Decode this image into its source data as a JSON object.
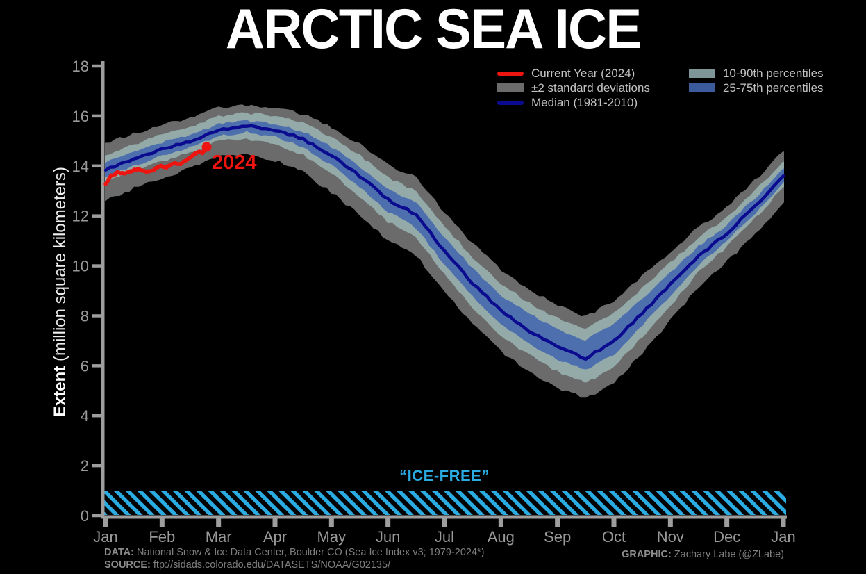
{
  "title": "ARCTIC SEA ICE",
  "y_axis": {
    "label_bold": "Extent",
    "label_rest": " (million square kilometers)",
    "ticks": [
      0,
      2,
      4,
      6,
      8,
      10,
      12,
      14,
      16,
      18
    ]
  },
  "x_axis": {
    "ticks": [
      "Jan",
      "Feb",
      "Mar",
      "Apr",
      "May",
      "Jun",
      "Jul",
      "Aug",
      "Sep",
      "Oct",
      "Nov",
      "Dec",
      "Jan"
    ]
  },
  "legend": {
    "items": [
      {
        "label": "Current Year (2024)",
        "swatch": "line",
        "color_key": "current_year"
      },
      {
        "label": "±2 standard deviations",
        "swatch": "box",
        "color_key": "legend_std"
      },
      {
        "label": "Median (1981-2010)",
        "swatch": "line",
        "color_key": "median"
      },
      {
        "label": "10-90th percentiles",
        "swatch": "box",
        "color_key": "legend_p1090"
      },
      {
        "label": "25-75th percentiles",
        "swatch": "box",
        "color_key": "legend_p2575"
      }
    ]
  },
  "annotations": {
    "current_year": "2024",
    "ice_free": "“ICE-FREE”"
  },
  "footer": {
    "data_label": "DATA:",
    "data_text": " National Snow & Ice Data Center, Boulder CO (Sea Ice Index v3; 1979-2024*)",
    "source_label": "SOURCE:",
    "source_text": " ftp://sidads.colorado.edu/DATASETS/NOAA/G02135/",
    "graphic_label": "GRAPHIC:",
    "graphic_text": " Zachary Labe (@ZLabe)"
  },
  "colors": {
    "background": "#000000",
    "title": "#ffffff",
    "axis": "#9e9e9e",
    "tick_label": "#999999",
    "current_year": "#ee1410",
    "median": "#0b0b8f",
    "std_band": "#6b6b6b",
    "p1090_band": "#94aaa8",
    "p2575_band": "#4d6fae",
    "legend_std": "#6b6b6b",
    "legend_p1090": "#7e9697",
    "legend_p2575": "#3b5b9c",
    "ice_free": "#2aabe2",
    "footer_text": "#7f7f7f",
    "legend_text": "#c2c2c2"
  },
  "chart_data": {
    "type": "line",
    "title": "ARCTIC SEA ICE",
    "ylabel": "Extent (million square kilometers)",
    "ylim": [
      0,
      18
    ],
    "xlim_months": [
      0,
      12
    ],
    "grid": false,
    "legend_position": "top-right",
    "months": [
      0,
      0.5,
      1,
      1.5,
      2,
      2.5,
      3,
      3.5,
      4,
      4.5,
      5,
      5.5,
      6,
      6.5,
      7,
      7.5,
      8,
      8.5,
      9,
      9.5,
      10,
      10.5,
      11,
      11.5,
      12
    ],
    "series": [
      {
        "name": "Median (1981-2010)",
        "values": [
          13.83,
          14.28,
          14.67,
          15.0,
          15.45,
          15.6,
          15.45,
          15.08,
          14.43,
          13.6,
          12.65,
          12.05,
          10.6,
          9.3,
          8.2,
          7.4,
          6.75,
          6.3,
          7.0,
          8.1,
          9.25,
          10.4,
          11.3,
          12.4,
          13.6
        ]
      },
      {
        "name": "Current Year (2024)",
        "x": [
          0,
          0.1,
          0.22,
          0.34,
          0.47,
          0.59,
          0.71,
          0.84,
          0.96,
          1.08,
          1.21,
          1.33,
          1.45,
          1.57,
          1.66,
          1.72,
          1.79
        ],
        "values": [
          13.28,
          13.6,
          13.74,
          13.69,
          13.81,
          13.88,
          13.77,
          13.83,
          13.99,
          13.95,
          14.11,
          14.08,
          14.25,
          14.48,
          14.57,
          14.51,
          14.76
        ],
        "end_dot": true
      }
    ],
    "bands": [
      {
        "name": "±2 standard deviations",
        "upper": [
          14.9,
          15.28,
          15.62,
          15.9,
          16.3,
          16.4,
          16.3,
          16.03,
          15.53,
          14.85,
          14.0,
          13.5,
          12.1,
          10.85,
          9.8,
          9.02,
          8.38,
          7.93,
          8.55,
          9.55,
          10.55,
          11.5,
          12.3,
          13.4,
          14.55
        ],
        "lower": [
          12.63,
          13.13,
          13.57,
          13.92,
          14.4,
          14.45,
          14.25,
          13.78,
          12.98,
          12.05,
          11.05,
          10.45,
          9.0,
          7.7,
          6.6,
          5.8,
          5.15,
          4.7,
          5.35,
          6.55,
          7.85,
          9.2,
          10.2,
          11.3,
          12.55
        ]
      },
      {
        "name": "10-90th percentiles",
        "upper": [
          14.4,
          14.83,
          15.22,
          15.52,
          15.95,
          16.1,
          15.97,
          15.68,
          15.13,
          14.4,
          13.5,
          12.95,
          11.55,
          10.3,
          9.25,
          8.5,
          7.87,
          7.43,
          8.05,
          9.05,
          10.1,
          11.1,
          11.9,
          12.97,
          14.15
        ],
        "lower": [
          13.42,
          13.85,
          14.22,
          14.56,
          15.03,
          15.08,
          14.9,
          14.48,
          13.73,
          12.8,
          11.8,
          11.17,
          9.7,
          8.38,
          7.25,
          6.45,
          5.8,
          5.34,
          6.0,
          7.2,
          8.45,
          9.8,
          10.8,
          11.95,
          13.18
        ]
      },
      {
        "name": "25-75th percentiles",
        "upper": [
          14.1,
          14.54,
          14.92,
          15.22,
          15.65,
          15.78,
          15.65,
          15.33,
          14.73,
          13.95,
          13.05,
          12.5,
          11.1,
          9.85,
          8.8,
          8.05,
          7.43,
          7.0,
          7.65,
          8.65,
          9.7,
          10.75,
          11.6,
          12.68,
          13.87
        ],
        "lower": [
          13.6,
          14.04,
          14.42,
          14.76,
          15.22,
          15.38,
          15.2,
          14.78,
          14.08,
          13.2,
          12.2,
          11.55,
          10.1,
          8.8,
          7.7,
          6.92,
          6.29,
          5.85,
          6.5,
          7.65,
          8.85,
          10.08,
          11.02,
          12.15,
          13.37
        ]
      }
    ],
    "ice_free_band": {
      "label": "“ICE-FREE”",
      "from": 0,
      "to": 1
    }
  }
}
